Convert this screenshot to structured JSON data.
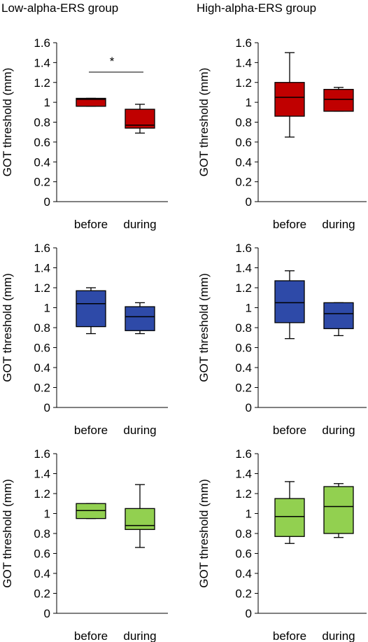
{
  "columns": [
    {
      "title": "Low-alpha-ERS  group"
    },
    {
      "title": "High-alpha-ERS  group"
    }
  ],
  "colors": {
    "red": "#c00000",
    "blue": "#2e4aa8",
    "green": "#92d050",
    "axis": "#000000",
    "whisker": "#000000"
  },
  "chart_data": [
    {
      "type": "box",
      "group": "Low-alpha-ERS  group",
      "color": "red",
      "ylabel": "GOT  threshold  (mm)",
      "ylim": [
        0,
        1.6
      ],
      "yticks": [
        "0",
        "0.2",
        "0.4",
        "0.6",
        "0.8",
        "1",
        "1.2",
        "1.4",
        "1.6"
      ],
      "categories": [
        "before",
        "during"
      ],
      "boxes": [
        {
          "min": 0.96,
          "q1": 0.96,
          "median": 1.03,
          "q3": 1.04,
          "max": 1.04
        },
        {
          "min": 0.69,
          "q1": 0.74,
          "median": 0.77,
          "q3": 0.93,
          "max": 0.98
        }
      ],
      "significance": "*"
    },
    {
      "type": "box",
      "group": "High-alpha-ERS  group",
      "color": "red",
      "ylabel": "GOT  threshold  (mm)",
      "ylim": [
        0,
        1.6
      ],
      "yticks": [
        "0",
        "0.2",
        "0.4",
        "0.6",
        "0.8",
        "1",
        "1.2",
        "1.4",
        "1.6"
      ],
      "categories": [
        "before",
        "during"
      ],
      "boxes": [
        {
          "min": 0.65,
          "q1": 0.86,
          "median": 1.05,
          "q3": 1.2,
          "max": 1.5
        },
        {
          "min": 0.91,
          "q1": 0.91,
          "median": 1.03,
          "q3": 1.13,
          "max": 1.15
        }
      ]
    },
    {
      "type": "box",
      "group": "Low-alpha-ERS  group",
      "color": "blue",
      "ylabel": "GOT  threshold  (mm)",
      "ylim": [
        0,
        1.6
      ],
      "yticks": [
        "0",
        "0.2",
        "0.4",
        "0.6",
        "0.8",
        "1",
        "1.2",
        "1.4",
        "1.6"
      ],
      "categories": [
        "before",
        "during"
      ],
      "boxes": [
        {
          "min": 0.74,
          "q1": 0.81,
          "median": 1.04,
          "q3": 1.17,
          "max": 1.2
        },
        {
          "min": 0.74,
          "q1": 0.77,
          "median": 0.91,
          "q3": 1.01,
          "max": 1.05
        }
      ]
    },
    {
      "type": "box",
      "group": "High-alpha-ERS  group",
      "color": "blue",
      "ylabel": "GOT  threshold  (mm)",
      "ylim": [
        0,
        1.6
      ],
      "yticks": [
        "0",
        "0.2",
        "0.4",
        "0.6",
        "0.8",
        "1",
        "1.2",
        "1.4",
        "1.6"
      ],
      "categories": [
        "before",
        "during"
      ],
      "boxes": [
        {
          "min": 0.69,
          "q1": 0.85,
          "median": 1.05,
          "q3": 1.27,
          "max": 1.37
        },
        {
          "min": 0.72,
          "q1": 0.79,
          "median": 0.94,
          "q3": 1.05,
          "max": 1.05
        }
      ]
    },
    {
      "type": "box",
      "group": "Low-alpha-ERS  group",
      "color": "green",
      "ylabel": "GOT  threshold  (mm)",
      "ylim": [
        0,
        1.6
      ],
      "yticks": [
        "0",
        "0.2",
        "0.4",
        "0.6",
        "0.8",
        "1",
        "1.2",
        "1.4",
        "1.6"
      ],
      "categories": [
        "before",
        "during"
      ],
      "boxes": [
        {
          "min": 0.95,
          "q1": 0.95,
          "median": 1.03,
          "q3": 1.1,
          "max": 1.1
        },
        {
          "min": 0.66,
          "q1": 0.84,
          "median": 0.88,
          "q3": 1.05,
          "max": 1.29
        }
      ]
    },
    {
      "type": "box",
      "group": "High-alpha-ERS  group",
      "color": "green",
      "ylabel": "GOT  threshold  (mm)",
      "ylim": [
        0,
        1.6
      ],
      "yticks": [
        "0",
        "0.2",
        "0.4",
        "0.6",
        "0.8",
        "1",
        "1.2",
        "1.4",
        "1.6"
      ],
      "categories": [
        "before",
        "during"
      ],
      "boxes": [
        {
          "min": 0.7,
          "q1": 0.77,
          "median": 0.97,
          "q3": 1.15,
          "max": 1.32
        },
        {
          "min": 0.76,
          "q1": 0.8,
          "median": 1.07,
          "q3": 1.27,
          "max": 1.3
        }
      ]
    }
  ]
}
